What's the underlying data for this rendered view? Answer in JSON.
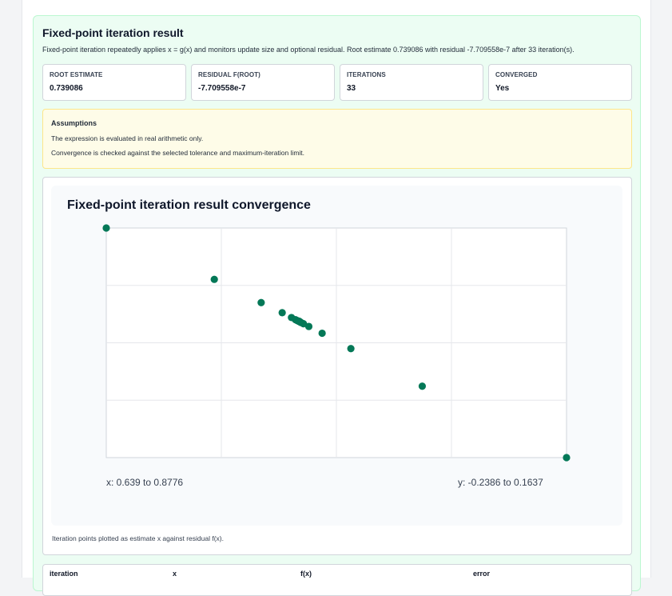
{
  "result": {
    "title": "Fixed-point iteration result",
    "description": "Fixed-point iteration repeatedly applies x = g(x) and monitors update size and optional residual. Root estimate 0.739086 with residual -7.709558e-7 after 33 iteration(s)."
  },
  "stats": [
    {
      "label": "ROOT ESTIMATE",
      "value": "0.739086"
    },
    {
      "label": "RESIDUAL F(ROOT)",
      "value": "-7.709558e-7"
    },
    {
      "label": "ITERATIONS",
      "value": "33"
    },
    {
      "label": "CONVERGED",
      "value": "Yes"
    }
  ],
  "assumptions": {
    "title": "Assumptions",
    "lines": [
      "The expression is evaluated in real arithmetic only.",
      "Convergence is checked against the selected tolerance and maximum-iteration limit."
    ]
  },
  "chart_data": {
    "type": "scatter",
    "title": "Fixed-point iteration result convergence",
    "x_range_label": "x: 0.639 to 0.8776",
    "y_range_label": "y: -0.2386 to 0.1637",
    "xlim": [
      0.639,
      0.8776
    ],
    "ylim": [
      -0.2386,
      0.1637
    ],
    "grid": true,
    "color": "#047857",
    "points": [
      {
        "x": 0.639,
        "y": 0.1637
      },
      {
        "x": 0.8776,
        "y": -0.2386
      },
      {
        "x": 0.695,
        "y": 0.0737
      },
      {
        "x": 0.8028,
        "y": -0.1135
      },
      {
        "x": 0.7193,
        "y": 0.033
      },
      {
        "x": 0.7658,
        "y": -0.0476
      },
      {
        "x": 0.7302,
        "y": 0.0153
      },
      {
        "x": 0.7509,
        "y": -0.0207
      },
      {
        "x": 0.735,
        "y": 0.0068
      },
      {
        "x": 0.744,
        "y": -0.0088
      },
      {
        "x": 0.7371,
        "y": 0.0031
      },
      {
        "x": 0.7412,
        "y": -0.004
      },
      {
        "x": 0.738,
        "y": 0.0014
      },
      {
        "x": 0.7399,
        "y": -0.0018
      },
      {
        "x": 0.7386,
        "y": 0.0006
      },
      {
        "x": 0.7394,
        "y": -0.0008
      },
      {
        "x": 0.7389,
        "y": 0.0002
      },
      {
        "x": 0.7392,
        "y": -0.0003
      },
      {
        "x": 0.739,
        "y": 0.0001
      },
      {
        "x": 0.739086,
        "y": -8e-07
      }
    ]
  },
  "chart_caption": "Iteration points plotted as estimate x against residual f(x).",
  "table": {
    "headers": [
      "iteration",
      "x",
      "f(x)",
      "error"
    ]
  }
}
